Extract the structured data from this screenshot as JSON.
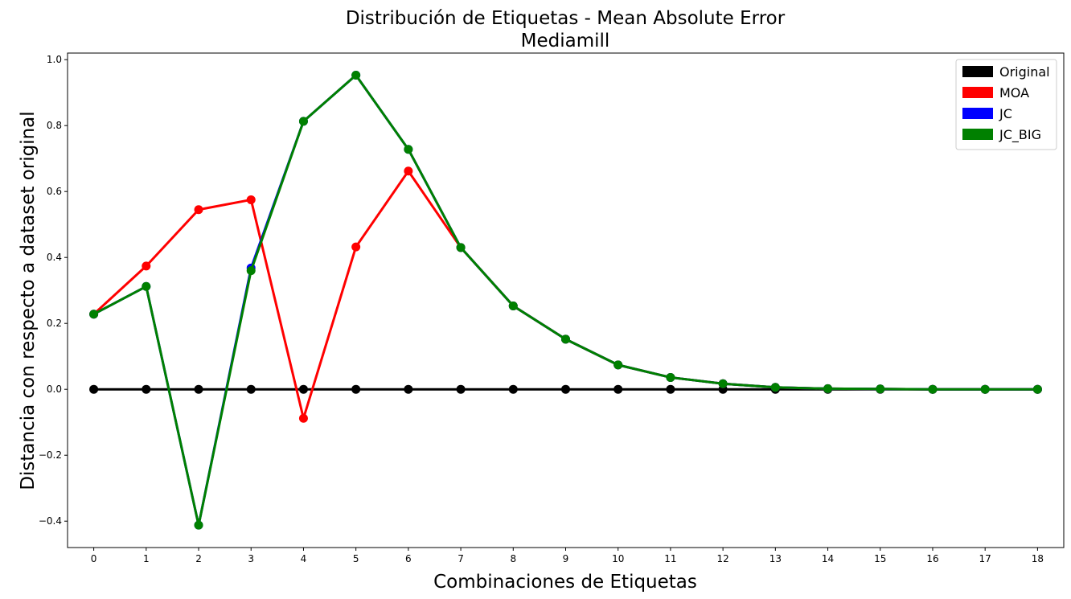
{
  "chart_data": {
    "type": "line",
    "title": "Distribución de Etiquetas - Mean Absolute Error",
    "subtitle": "Mediamill",
    "xlabel": "Combinaciones de Etiquetas",
    "ylabel": "Distancia con respecto a dataset original",
    "x": [
      0,
      1,
      2,
      3,
      4,
      5,
      6,
      7,
      8,
      9,
      10,
      11,
      12,
      13,
      14,
      15,
      16,
      17,
      18
    ],
    "xticks": [
      "0",
      "1",
      "2",
      "3",
      "4",
      "5",
      "6",
      "7",
      "8",
      "9",
      "10",
      "11",
      "12",
      "13",
      "14",
      "15",
      "16",
      "17",
      "18"
    ],
    "yticks": [
      -0.4,
      -0.2,
      0.0,
      0.2,
      0.4,
      0.6,
      0.8,
      1.0
    ],
    "ytick_labels": [
      "−0.4",
      "−0.2",
      "0.0",
      "0.2",
      "0.4",
      "0.6",
      "0.8",
      "1.0"
    ],
    "xlim": [
      -0.5,
      18.5
    ],
    "ylim": [
      -0.48,
      1.02
    ],
    "grid": false,
    "legend_position": "top-right",
    "series": [
      {
        "name": "Original",
        "color": "#000000",
        "values": [
          0,
          0,
          0,
          0,
          0,
          0,
          0,
          0,
          0,
          0,
          0,
          0,
          0,
          0,
          0,
          0,
          0,
          0,
          0
        ]
      },
      {
        "name": "MOA",
        "color": "#ff0000",
        "values": [
          0.228,
          0.374,
          0.545,
          0.575,
          -0.088,
          0.432,
          0.662,
          0.43,
          0.253,
          0.152,
          0.074,
          0.036,
          0.017,
          0.006,
          0.002,
          0.001,
          0.0,
          0.0,
          0.0
        ]
      },
      {
        "name": "JC",
        "color": "#0000ff",
        "values": [
          0.228,
          0.312,
          -0.412,
          0.368,
          0.813,
          0.953,
          0.728,
          0.43,
          0.253,
          0.152,
          0.074,
          0.036,
          0.017,
          0.006,
          0.002,
          0.001,
          0.0,
          0.0,
          0.0
        ]
      },
      {
        "name": "JC_BIG",
        "color": "#008000",
        "values": [
          0.228,
          0.312,
          -0.412,
          0.36,
          0.813,
          0.953,
          0.728,
          0.43,
          0.253,
          0.152,
          0.074,
          0.036,
          0.017,
          0.006,
          0.002,
          0.001,
          0.0,
          0.0,
          0.0
        ]
      }
    ]
  }
}
